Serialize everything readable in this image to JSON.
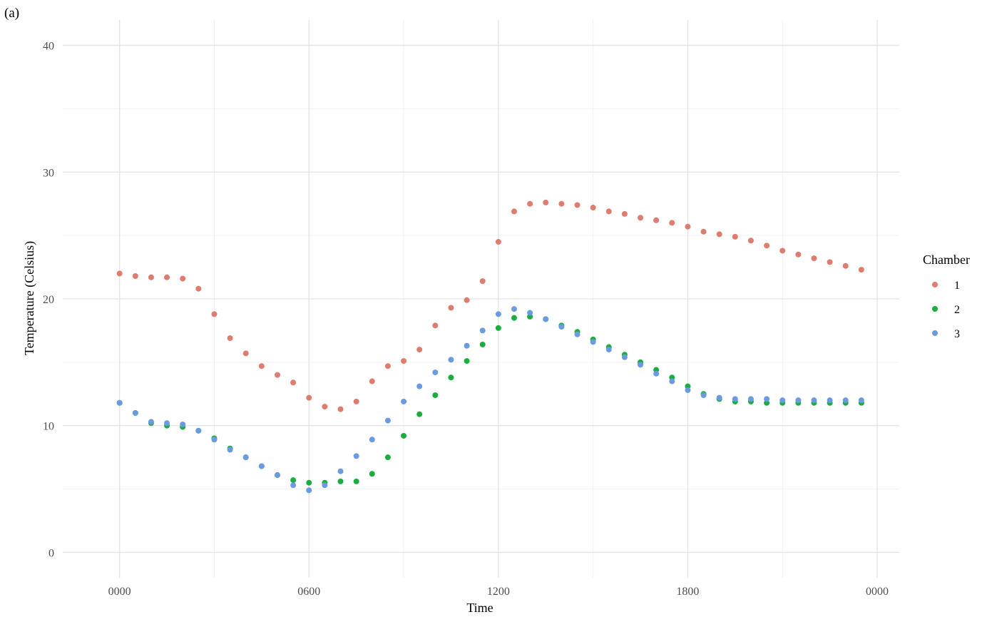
{
  "panel_label": "(a)",
  "chart_data": {
    "type": "scatter",
    "xlabel": "Time",
    "ylabel": "Temperature (Celsius)",
    "xlim": [
      -1.8,
      24.7
    ],
    "ylim": [
      -2,
      42
    ],
    "x_ticks": [
      0,
      6,
      12,
      18,
      24
    ],
    "x_tick_labels": [
      "0000",
      "0600",
      "1200",
      "1800",
      "0000"
    ],
    "y_ticks": [
      0,
      10,
      20,
      30,
      40
    ],
    "y_tick_labels": [
      "0",
      "10",
      "20",
      "30",
      "40"
    ],
    "grid": true,
    "legend": {
      "title": "Chamber",
      "position": "right"
    },
    "x": [
      0,
      0.5,
      1,
      1.5,
      2,
      2.5,
      3,
      3.5,
      4,
      4.5,
      5,
      5.5,
      6,
      6.5,
      7,
      7.5,
      8,
      8.5,
      9,
      9.5,
      10,
      10.5,
      11,
      11.5,
      12,
      12.5,
      13,
      13.5,
      14,
      14.5,
      15,
      15.5,
      16,
      16.5,
      17,
      17.5,
      18,
      18.5,
      19,
      19.5,
      20,
      20.5,
      21,
      21.5,
      22,
      22.5,
      23,
      23.5
    ],
    "series": [
      {
        "name": "1",
        "color": "#E07B6F",
        "values": [
          22.0,
          21.8,
          21.7,
          21.7,
          21.6,
          20.8,
          18.8,
          16.9,
          15.7,
          14.7,
          14.0,
          13.4,
          12.2,
          11.5,
          11.3,
          11.9,
          13.5,
          14.7,
          15.1,
          16.0,
          17.9,
          19.3,
          19.9,
          21.4,
          24.5,
          26.9,
          27.5,
          27.6,
          27.5,
          27.4,
          27.2,
          26.9,
          26.7,
          26.4,
          26.2,
          26.0,
          25.7,
          25.3,
          25.1,
          24.9,
          24.6,
          24.2,
          23.8,
          23.5,
          23.2,
          22.9,
          22.6,
          22.3
        ]
      },
      {
        "name": "2",
        "color": "#1AAE3F",
        "values": [
          11.8,
          11.0,
          10.2,
          10.0,
          9.9,
          9.6,
          9.0,
          8.2,
          7.5,
          6.8,
          6.1,
          5.7,
          5.5,
          5.5,
          5.6,
          5.6,
          6.2,
          7.5,
          9.2,
          10.9,
          12.4,
          13.8,
          15.1,
          16.4,
          17.7,
          18.5,
          18.6,
          18.4,
          17.9,
          17.4,
          16.8,
          16.2,
          15.6,
          15.0,
          14.4,
          13.8,
          13.1,
          12.5,
          12.1,
          11.9,
          11.9,
          11.8,
          11.8,
          11.8,
          11.8,
          11.8,
          11.8,
          11.8
        ]
      },
      {
        "name": "3",
        "color": "#6B9AE0",
        "values": [
          11.8,
          11.0,
          10.3,
          10.2,
          10.1,
          9.6,
          8.9,
          8.1,
          7.5,
          6.8,
          6.1,
          5.3,
          4.9,
          5.3,
          6.4,
          7.6,
          8.9,
          10.4,
          11.9,
          13.1,
          14.2,
          15.2,
          16.3,
          17.5,
          18.8,
          19.2,
          18.9,
          18.4,
          17.8,
          17.2,
          16.6,
          16.0,
          15.4,
          14.8,
          14.1,
          13.5,
          12.8,
          12.4,
          12.2,
          12.1,
          12.1,
          12.1,
          12.0,
          12.0,
          12.0,
          12.0,
          12.0,
          12.0
        ]
      }
    ]
  }
}
